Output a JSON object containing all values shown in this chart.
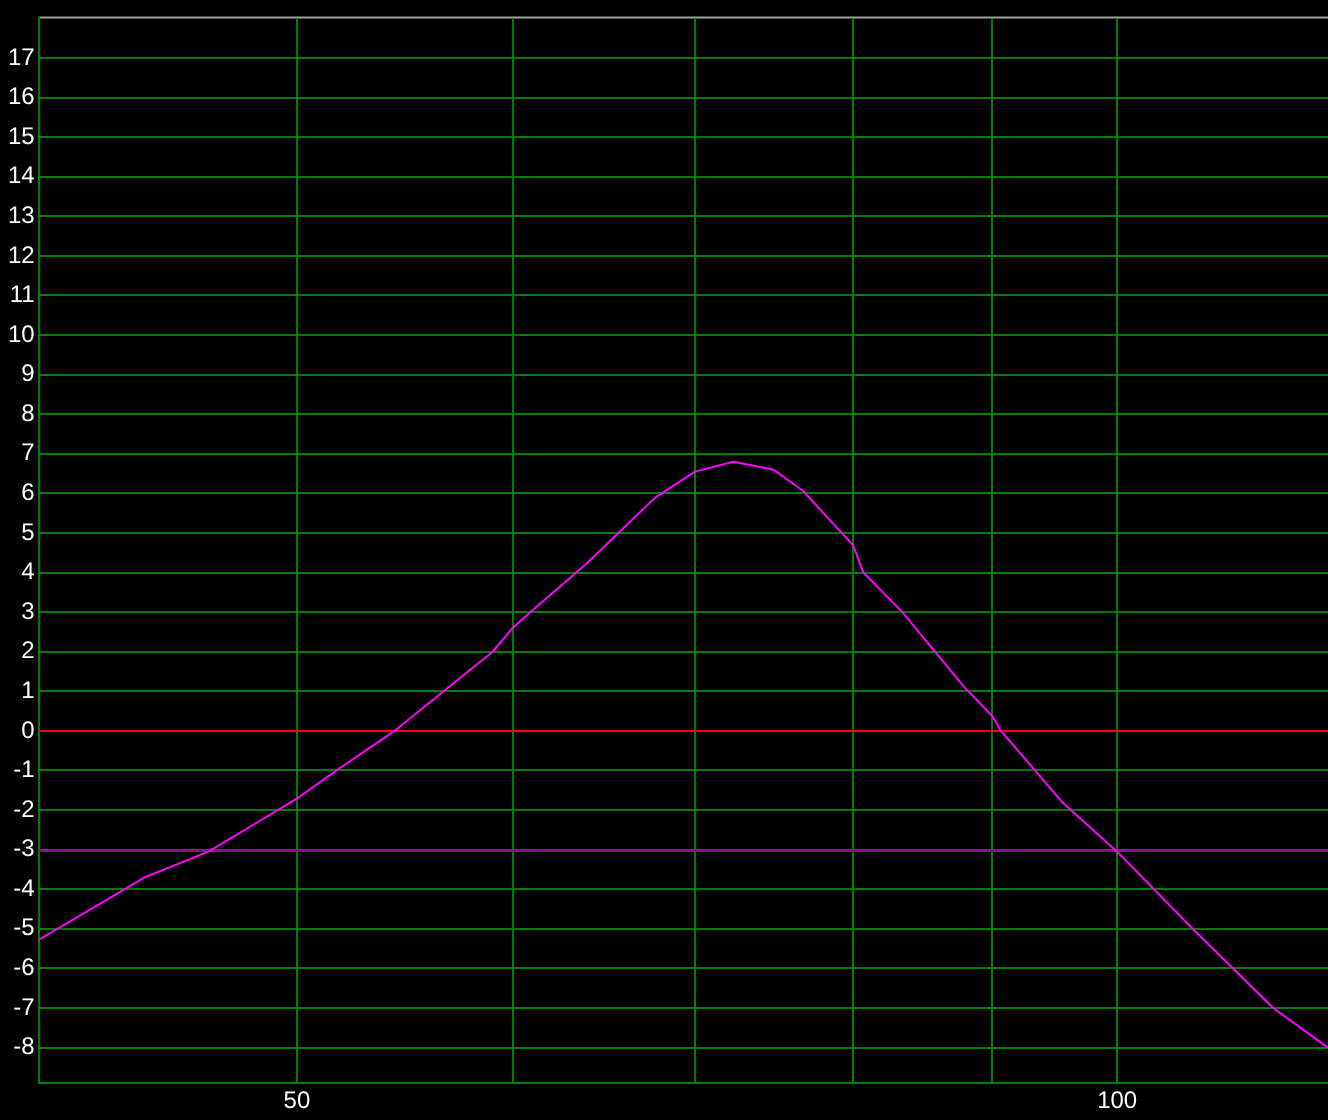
{
  "chart_data": {
    "type": "line",
    "x": [
      40.2,
      44.0,
      46.4,
      50,
      51.7,
      54.3,
      56.6,
      59.0,
      60,
      60.9,
      63.8,
      67.7,
      70,
      72.3,
      74.8,
      76.7,
      80,
      80.7,
      83.4,
      87.9,
      90,
      90.6,
      95.5,
      100,
      106.7,
      114.1,
      119.5
    ],
    "series": [
      {
        "color": "#ff00ff",
        "values": [
          -5.28,
          -3.69,
          -3.05,
          -1.71,
          -1,
          0,
          1,
          2,
          2.6,
          3,
          4.2,
          5.9,
          6.55,
          6.8,
          6.6,
          6.06,
          4.69,
          4.0,
          3.0,
          1.1,
          0.37,
          0.02,
          -1.81,
          -3.05,
          -5.03,
          -7.0,
          -8.0
        ]
      }
    ],
    "log": "x",
    "xlim": [
      40.2,
      119.5
    ],
    "xticks": [
      50,
      {
        "value": 60,
        "label": null
      },
      {
        "value": 70,
        "label": null
      },
      {
        "value": 80,
        "label": null
      },
      {
        "value": 90,
        "label": null
      },
      100
    ],
    "ylim": [
      -8.9,
      18
    ],
    "yticks": [
      -8,
      -7,
      -6,
      -5,
      -4,
      -3,
      -2,
      -1,
      0,
      1,
      2,
      3,
      4,
      5,
      6,
      7,
      8,
      9,
      10,
      11,
      12,
      13,
      14,
      15,
      16,
      17
    ],
    "grid": true,
    "legend": false,
    "marker": "none",
    "line_style": "solid",
    "ref_lines": [
      {
        "axis": "y",
        "value": 0,
        "color": "#ff0000"
      },
      {
        "axis": "y",
        "value": -3,
        "color": "#990099"
      }
    ]
  }
}
